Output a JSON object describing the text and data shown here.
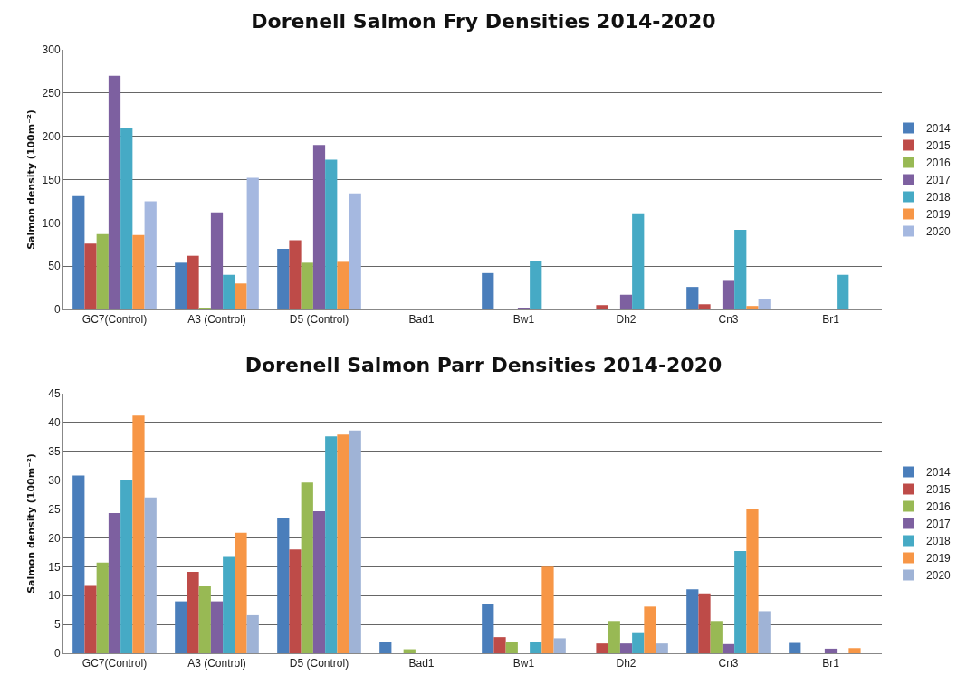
{
  "chart_data": [
    {
      "type": "bar",
      "title": "Dorenell Salmon Fry Densities 2014-2020",
      "ylabel": "Salmon density (100m⁻²)",
      "categories": [
        "GC7(Control)",
        "A3 (Control)",
        "D5 (Control)",
        "Bad1",
        "Bw1",
        "Dh2",
        "Cn3",
        "Br1"
      ],
      "series": [
        {
          "name": "2014",
          "color": "#4a7ebb",
          "values": [
            131,
            54,
            70,
            0,
            42,
            0,
            26,
            0
          ]
        },
        {
          "name": "2015",
          "color": "#be4b48",
          "values": [
            76,
            62,
            80,
            0,
            0,
            5,
            6,
            0
          ]
        },
        {
          "name": "2016",
          "color": "#98b954",
          "values": [
            87,
            2,
            54,
            0,
            0,
            0,
            0,
            0
          ]
        },
        {
          "name": "2017",
          "color": "#7d60a0",
          "values": [
            270,
            112,
            190,
            0,
            2,
            17,
            33,
            0
          ]
        },
        {
          "name": "2018",
          "color": "#46aac5",
          "values": [
            210,
            40,
            173,
            0,
            56,
            111,
            92,
            40
          ]
        },
        {
          "name": "2019",
          "color": "#f79646",
          "values": [
            86,
            30,
            55,
            0,
            0,
            0,
            4,
            0
          ]
        },
        {
          "name": "2020",
          "color": "#a5b8e0",
          "values": [
            125,
            152,
            134,
            0,
            0,
            0,
            12,
            0
          ]
        }
      ],
      "ylim": [
        0,
        300
      ],
      "yticks": [
        0,
        50,
        100,
        150,
        200,
        250,
        300
      ],
      "grid": "y",
      "legend": "right"
    },
    {
      "type": "bar",
      "title": "Dorenell Salmon Parr Densities 2014-2020",
      "ylabel": "Salmon density (100m⁻²)",
      "categories": [
        "GC7(Control)",
        "A3 (Control)",
        "D5 (Control)",
        "Bad1",
        "Bw1",
        "Dh2",
        "Cn3",
        "Br1"
      ],
      "series": [
        {
          "name": "2014",
          "color": "#4a7ebb",
          "values": [
            30.8,
            9,
            23.5,
            2,
            8.5,
            0,
            11.1,
            1.8
          ]
        },
        {
          "name": "2015",
          "color": "#be4b48",
          "values": [
            11.7,
            14.1,
            18,
            0,
            2.8,
            1.7,
            10.4,
            0
          ]
        },
        {
          "name": "2016",
          "color": "#98b954",
          "values": [
            15.7,
            11.6,
            29.6,
            0.7,
            2,
            5.6,
            5.6,
            0
          ]
        },
        {
          "name": "2017",
          "color": "#7d60a0",
          "values": [
            24.3,
            9,
            24.6,
            0,
            0,
            1.7,
            1.6,
            0.8
          ]
        },
        {
          "name": "2018",
          "color": "#46aac5",
          "values": [
            30,
            16.7,
            37.6,
            0,
            2,
            3.5,
            17.7,
            0
          ]
        },
        {
          "name": "2019",
          "color": "#f79646",
          "values": [
            41.2,
            20.9,
            37.9,
            0,
            15,
            8.1,
            25,
            0.9
          ]
        },
        {
          "name": "2020",
          "color": "#9fb3d6",
          "values": [
            27,
            6.6,
            38.6,
            0,
            2.6,
            1.7,
            7.3,
            0
          ]
        }
      ],
      "ylim": [
        0,
        45
      ],
      "yticks": [
        0,
        5,
        10,
        15,
        20,
        25,
        30,
        35,
        40,
        45
      ],
      "grid": "y",
      "legend": "right"
    }
  ]
}
